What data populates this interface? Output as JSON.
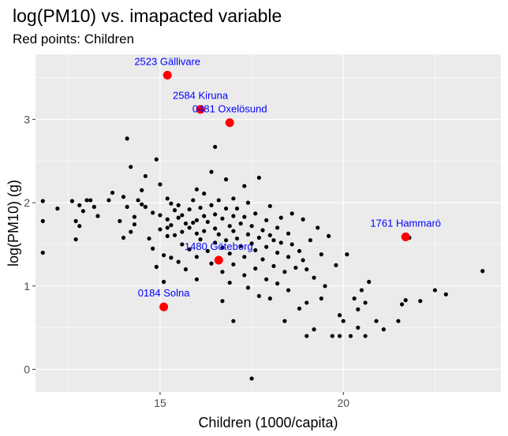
{
  "chart_data": {
    "type": "scatter",
    "title": "log(PM10) vs. imapacted variable",
    "subtitle": "Red points: Children",
    "xlabel": "Children (1000/capita)",
    "ylabel": "log(PM10) (g)",
    "xlim": [
      11.6,
      24.3
    ],
    "ylim": [
      -0.27,
      3.78
    ],
    "x_ticks": [
      15,
      20
    ],
    "y_ticks": [
      0,
      1,
      2,
      3
    ],
    "grid": true,
    "background": "#ebebeb",
    "colors": {
      "point": "#000000",
      "highlight": "#ff0000",
      "label": "#0000ff"
    },
    "points": [
      [
        11.8,
        2.02
      ],
      [
        11.8,
        1.78
      ],
      [
        11.8,
        1.4
      ],
      [
        12.2,
        1.93
      ],
      [
        12.6,
        2.02
      ],
      [
        12.7,
        1.78
      ],
      [
        12.7,
        1.56
      ],
      [
        12.8,
        1.72
      ],
      [
        12.8,
        1.97
      ],
      [
        12.9,
        1.9
      ],
      [
        13.0,
        2.03
      ],
      [
        13.1,
        2.03
      ],
      [
        13.2,
        1.95
      ],
      [
        13.3,
        1.84
      ],
      [
        13.6,
        2.03
      ],
      [
        13.7,
        2.12
      ],
      [
        13.9,
        1.78
      ],
      [
        14.0,
        1.58
      ],
      [
        14.0,
        2.07
      ],
      [
        14.1,
        1.95
      ],
      [
        14.1,
        2.77
      ],
      [
        14.2,
        2.43
      ],
      [
        14.3,
        1.74
      ],
      [
        14.2,
        1.65
      ],
      [
        14.3,
        1.83
      ],
      [
        14.4,
        2.03
      ],
      [
        14.5,
        1.98
      ],
      [
        14.5,
        2.15
      ],
      [
        14.6,
        1.95
      ],
      [
        14.6,
        2.32
      ],
      [
        14.7,
        1.57
      ],
      [
        14.8,
        1.45
      ],
      [
        14.8,
        1.88
      ],
      [
        14.9,
        1.23
      ],
      [
        14.9,
        2.52
      ],
      [
        15.0,
        1.68
      ],
      [
        15.0,
        1.85
      ],
      [
        15.0,
        2.22
      ],
      [
        15.1,
        1.37
      ],
      [
        15.1,
        1.05
      ],
      [
        15.2,
        1.8
      ],
      [
        15.2,
        1.7
      ],
      [
        15.2,
        1.6
      ],
      [
        15.2,
        2.05
      ],
      [
        15.3,
        1.73
      ],
      [
        15.3,
        1.99
      ],
      [
        15.3,
        1.34
      ],
      [
        15.4,
        1.91
      ],
      [
        15.4,
        1.61
      ],
      [
        15.5,
        1.97
      ],
      [
        15.5,
        1.82
      ],
      [
        15.5,
        1.29
      ],
      [
        15.6,
        1.85
      ],
      [
        15.6,
        1.5
      ],
      [
        15.6,
        1.65
      ],
      [
        15.7,
        1.75
      ],
      [
        15.7,
        1.2
      ],
      [
        15.8,
        1.7
      ],
      [
        15.8,
        1.44
      ],
      [
        15.8,
        1.92
      ],
      [
        15.9,
        1.76
      ],
      [
        15.9,
        2.03
      ],
      [
        16.0,
        1.79
      ],
      [
        16.0,
        1.63
      ],
      [
        16.0,
        1.35
      ],
      [
        16.0,
        1.08
      ],
      [
        16.0,
        2.16
      ],
      [
        16.1,
        1.94
      ],
      [
        16.1,
        1.56
      ],
      [
        16.2,
        1.66
      ],
      [
        16.2,
        2.11
      ],
      [
        16.2,
        1.84
      ],
      [
        16.3,
        1.77
      ],
      [
        16.3,
        1.42
      ],
      [
        16.4,
        1.97
      ],
      [
        16.4,
        1.27
      ],
      [
        16.4,
        2.37
      ],
      [
        16.5,
        1.86
      ],
      [
        16.5,
        1.69
      ],
      [
        16.5,
        1.52
      ],
      [
        16.5,
        2.67
      ],
      [
        16.6,
        1.62
      ],
      [
        16.6,
        2.03
      ],
      [
        16.7,
        1.81
      ],
      [
        16.7,
        1.46
      ],
      [
        16.7,
        1.17
      ],
      [
        16.7,
        0.82
      ],
      [
        16.8,
        1.93
      ],
      [
        16.8,
        1.55
      ],
      [
        16.8,
        2.28
      ],
      [
        16.9,
        1.72
      ],
      [
        16.9,
        1.39
      ],
      [
        16.9,
        1.04
      ],
      [
        17.0,
        2.05
      ],
      [
        17.0,
        1.84
      ],
      [
        17.0,
        1.66
      ],
      [
        17.0,
        0.58
      ],
      [
        17.0,
        1.26
      ],
      [
        17.1,
        1.57
      ],
      [
        17.1,
        1.93
      ],
      [
        17.2,
        1.48
      ],
      [
        17.2,
        1.75
      ],
      [
        17.3,
        1.83
      ],
      [
        17.3,
        1.35
      ],
      [
        17.3,
        1.13
      ],
      [
        17.3,
        2.2
      ],
      [
        17.4,
        1.62
      ],
      [
        17.4,
        0.98
      ],
      [
        17.4,
        2.0
      ],
      [
        17.5,
        1.51
      ],
      [
        17.5,
        -0.11
      ],
      [
        17.5,
        1.72
      ],
      [
        17.6,
        1.87
      ],
      [
        17.6,
        1.43
      ],
      [
        17.6,
        1.21
      ],
      [
        17.7,
        1.58
      ],
      [
        17.7,
        0.88
      ],
      [
        17.7,
        2.3
      ],
      [
        17.8,
        1.67
      ],
      [
        17.8,
        1.32
      ],
      [
        17.9,
        1.79
      ],
      [
        17.9,
        1.47
      ],
      [
        17.9,
        1.08
      ],
      [
        18.0,
        1.96
      ],
      [
        18.0,
        1.61
      ],
      [
        18.0,
        0.85
      ],
      [
        18.1,
        1.55
      ],
      [
        18.1,
        1.24
      ],
      [
        18.2,
        1.7
      ],
      [
        18.2,
        1.4
      ],
      [
        18.2,
        1.03
      ],
      [
        18.3,
        1.82
      ],
      [
        18.3,
        1.52
      ],
      [
        18.4,
        1.17
      ],
      [
        18.4,
        0.58
      ],
      [
        18.5,
        1.63
      ],
      [
        18.5,
        1.35
      ],
      [
        18.5,
        0.95
      ],
      [
        18.6,
        1.5
      ],
      [
        18.6,
        1.87
      ],
      [
        18.7,
        1.22
      ],
      [
        18.8,
        1.42
      ],
      [
        18.8,
        0.73
      ],
      [
        18.9,
        1.31
      ],
      [
        18.9,
        1.8
      ],
      [
        19.0,
        1.2
      ],
      [
        19.0,
        0.8
      ],
      [
        19.0,
        0.4
      ],
      [
        19.1,
        1.55
      ],
      [
        19.2,
        1.1
      ],
      [
        19.2,
        0.48
      ],
      [
        19.3,
        1.7
      ],
      [
        19.4,
        0.85
      ],
      [
        19.4,
        1.38
      ],
      [
        19.5,
        1.0
      ],
      [
        19.6,
        1.6
      ],
      [
        19.7,
        0.4
      ],
      [
        19.8,
        1.25
      ],
      [
        19.9,
        0.65
      ],
      [
        19.9,
        0.4
      ],
      [
        20.0,
        0.58
      ],
      [
        20.1,
        1.38
      ],
      [
        20.2,
        0.4
      ],
      [
        20.3,
        0.85
      ],
      [
        20.4,
        0.5
      ],
      [
        20.4,
        0.72
      ],
      [
        20.5,
        0.95
      ],
      [
        20.6,
        0.8
      ],
      [
        20.6,
        0.4
      ],
      [
        20.7,
        1.05
      ],
      [
        20.9,
        0.58
      ],
      [
        21.1,
        0.48
      ],
      [
        21.5,
        0.58
      ],
      [
        21.6,
        0.78
      ],
      [
        21.7,
        0.83
      ],
      [
        21.8,
        1.58
      ],
      [
        22.1,
        0.82
      ],
      [
        22.5,
        0.95
      ],
      [
        22.8,
        0.9
      ],
      [
        23.8,
        1.18
      ]
    ],
    "highlighted": [
      {
        "x": 15.2,
        "y": 3.53,
        "label": "2523 Gällivare"
      },
      {
        "x": 16.1,
        "y": 3.12,
        "label": "2584 Kiruna"
      },
      {
        "x": 16.9,
        "y": 2.96,
        "label": "0481 Oxelösund"
      },
      {
        "x": 21.7,
        "y": 1.59,
        "label": "1761 Hammarö"
      },
      {
        "x": 16.6,
        "y": 1.31,
        "label": "1480 Göteborg"
      },
      {
        "x": 15.1,
        "y": 0.75,
        "label": "0184 Solna"
      }
    ]
  }
}
